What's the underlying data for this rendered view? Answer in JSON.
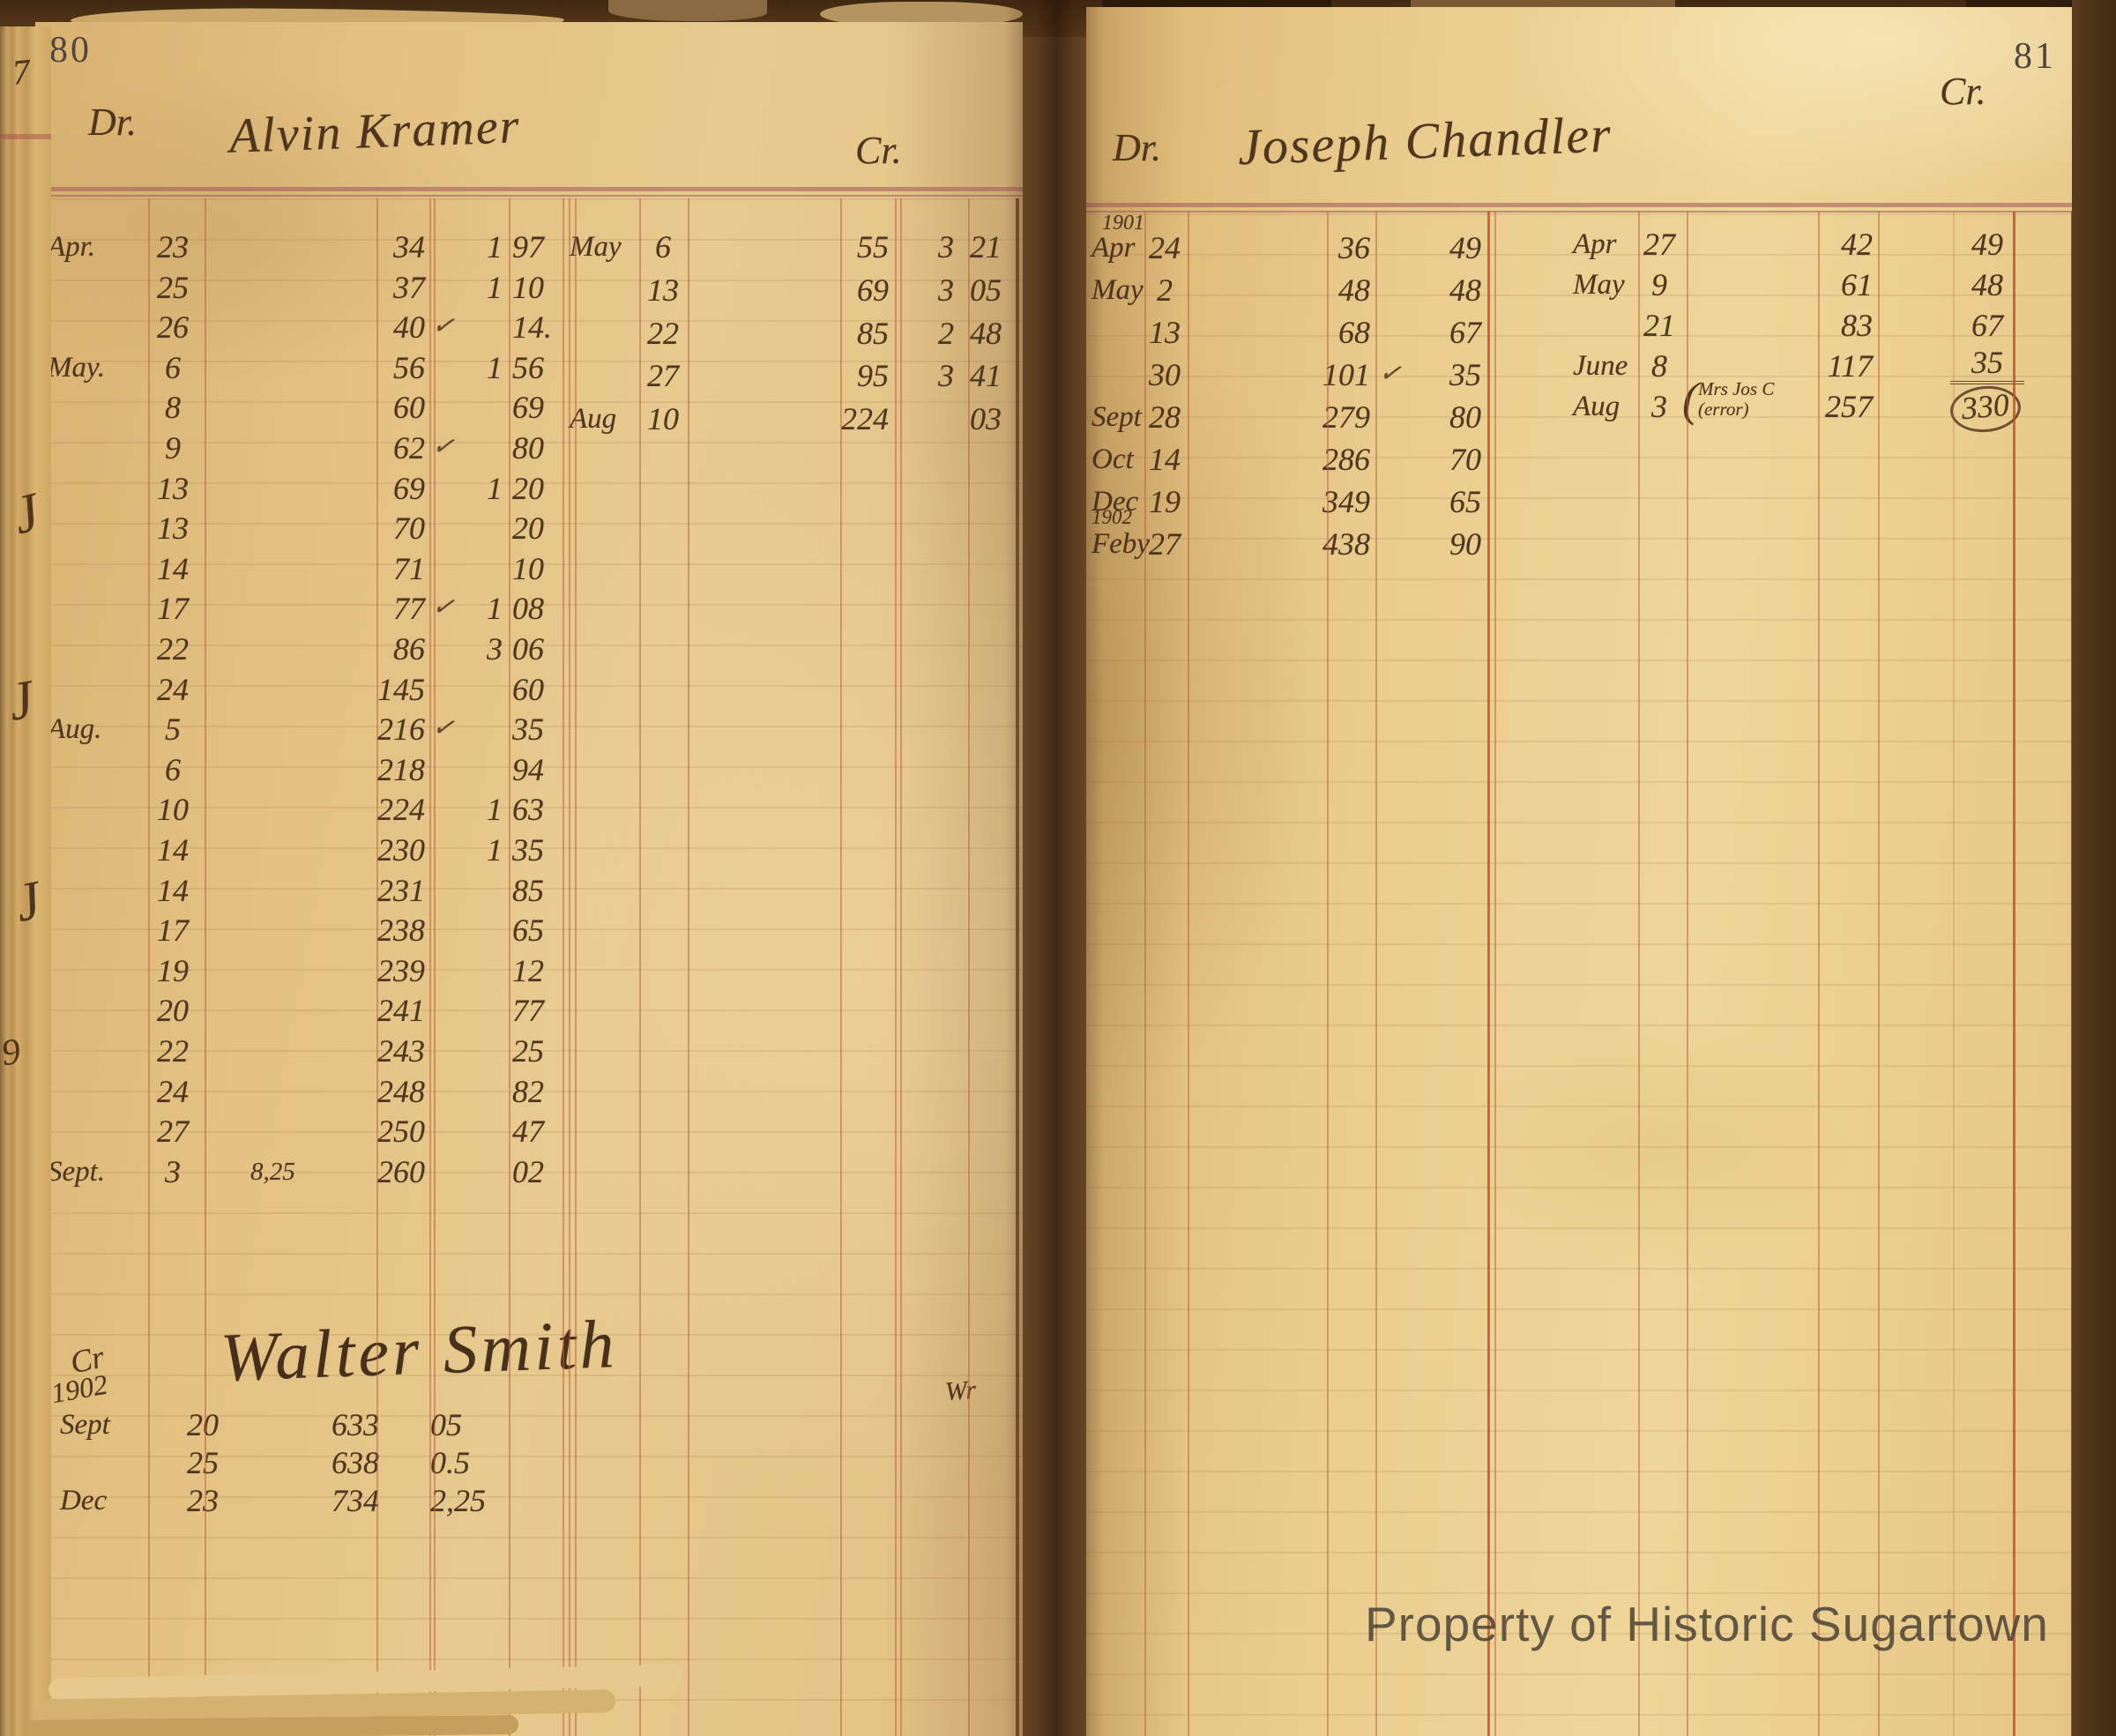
{
  "watermark": "Property of Historic Sugartown",
  "edge_marks": [
    "7",
    "J",
    "J",
    "J",
    "9"
  ],
  "left_page": {
    "page_number": "80",
    "header": {
      "dr_label": "Dr.",
      "account_name": "Alvin Kramer",
      "cr_label": "Cr."
    },
    "debit_rows": [
      {
        "m": "Apr.",
        "d": "23",
        "ref": "34",
        "dol": "1",
        "c": "97"
      },
      {
        "m": "",
        "d": "25",
        "ref": "37",
        "dol": "1",
        "c": "10"
      },
      {
        "m": "",
        "d": "26",
        "ref": "40",
        "chk": true,
        "dol": "",
        "c": "14."
      },
      {
        "m": "May.",
        "d": "6",
        "ref": "56",
        "dol": "1",
        "c": "56"
      },
      {
        "m": "",
        "d": "8",
        "ref": "60",
        "dol": "",
        "c": "69"
      },
      {
        "m": "",
        "d": "9",
        "ref": "62",
        "chk": true,
        "dol": "",
        "c": "80"
      },
      {
        "m": "",
        "d": "13",
        "ref": "69",
        "dol": "1",
        "c": "20"
      },
      {
        "m": "",
        "d": "13",
        "ref": "70",
        "dol": "",
        "c": "20"
      },
      {
        "m": "",
        "d": "14",
        "ref": "71",
        "dol": "",
        "c": "10"
      },
      {
        "m": "",
        "d": "17",
        "ref": "77",
        "chk": true,
        "dol": "1",
        "c": "08"
      },
      {
        "m": "",
        "d": "22",
        "ref": "86",
        "dol": "3",
        "c": "06"
      },
      {
        "m": "",
        "d": "24",
        "ref": "145",
        "dol": "",
        "c": "60"
      },
      {
        "m": "Aug.",
        "d": "5",
        "ref": "216",
        "chk": true,
        "dol": "",
        "c": "35"
      },
      {
        "m": "",
        "d": "6",
        "ref": "218",
        "dol": "",
        "c": "94"
      },
      {
        "m": "",
        "d": "10",
        "ref": "224",
        "dol": "1",
        "c": "63"
      },
      {
        "m": "",
        "d": "14",
        "ref": "230",
        "dol": "1",
        "c": "35"
      },
      {
        "m": "",
        "d": "14",
        "ref": "231",
        "dol": "",
        "c": "85"
      },
      {
        "m": "",
        "d": "17",
        "ref": "238",
        "dol": "",
        "c": "65"
      },
      {
        "m": "",
        "d": "19",
        "ref": "239",
        "dol": "",
        "c": "12"
      },
      {
        "m": "",
        "d": "20",
        "ref": "241",
        "dol": "",
        "c": "77"
      },
      {
        "m": "",
        "d": "22",
        "ref": "243",
        "dol": "",
        "c": "25"
      },
      {
        "m": "",
        "d": "24",
        "ref": "248",
        "dol": "",
        "c": "82"
      },
      {
        "m": "",
        "d": "27",
        "ref": "250",
        "dol": "",
        "c": "47"
      },
      {
        "m": "Sept.",
        "d": "3",
        "pre": "8,25",
        "ref": "260",
        "dol": "",
        "c": "02"
      }
    ],
    "credit_rows": [
      {
        "m": "May",
        "d": "6",
        "ref": "55",
        "dol": "3",
        "c": "21"
      },
      {
        "m": "",
        "d": "13",
        "ref": "69",
        "dol": "3",
        "c": "05"
      },
      {
        "m": "",
        "d": "22",
        "ref": "85",
        "dol": "2",
        "c": "48"
      },
      {
        "m": "",
        "d": "27",
        "ref": "95",
        "dol": "3",
        "c": "41"
      },
      {
        "m": "Aug",
        "d": "10",
        "ref": "224",
        "dol": "",
        "c": "03"
      }
    ],
    "second_account": {
      "cr_label": "Cr",
      "year": "1902",
      "name": "Walter Smith",
      "mark": "Wr",
      "rows": [
        {
          "m": "Sept",
          "d": "20",
          "ref": "633",
          "amt": "05"
        },
        {
          "m": "",
          "d": "25",
          "ref": "638",
          "amt": "0.5"
        },
        {
          "m": "Dec",
          "d": "23",
          "ref": "734",
          "amt": "2,25"
        }
      ]
    }
  },
  "right_page": {
    "page_number": "81",
    "header": {
      "dr_label": "Dr.",
      "account_name": "Joseph Chandler",
      "cr_label": "Cr.",
      "year": "1901"
    },
    "debit_rows": [
      {
        "m": "Apr",
        "d": "24",
        "ref": "36",
        "c": "49"
      },
      {
        "m": "May",
        "d": "2",
        "ref": "48",
        "c": "48"
      },
      {
        "m": "",
        "d": "13",
        "ref": "68",
        "c": "67"
      },
      {
        "m": "",
        "d": "30",
        "ref": "101",
        "chk": true,
        "c": "35"
      },
      {
        "m": "Sept",
        "d": "28",
        "ref": "279",
        "c": "80"
      },
      {
        "m": "Oct",
        "d": "14",
        "ref": "286",
        "c": "70"
      },
      {
        "m": "Dec",
        "d": "19",
        "ref": "349",
        "c": "65"
      },
      {
        "m": "Feby",
        "d": "27",
        "year": "1902",
        "ref": "438",
        "c": "90"
      }
    ],
    "credit_rows": [
      {
        "m": "Apr",
        "d": "27",
        "ref": "42",
        "c": "49"
      },
      {
        "m": "May",
        "d": "9",
        "ref": "61",
        "c": "48"
      },
      {
        "m": "",
        "d": "21",
        "ref": "83",
        "c": "67"
      },
      {
        "m": "June",
        "d": "8",
        "ref": "117",
        "c": "35",
        "underline": true
      },
      {
        "m": "Aug",
        "d": "3",
        "note": {
          "line1": "Mrs Jos C",
          "line2": "(error)"
        },
        "ref": "257",
        "c": "330",
        "circle": true
      }
    ]
  }
}
